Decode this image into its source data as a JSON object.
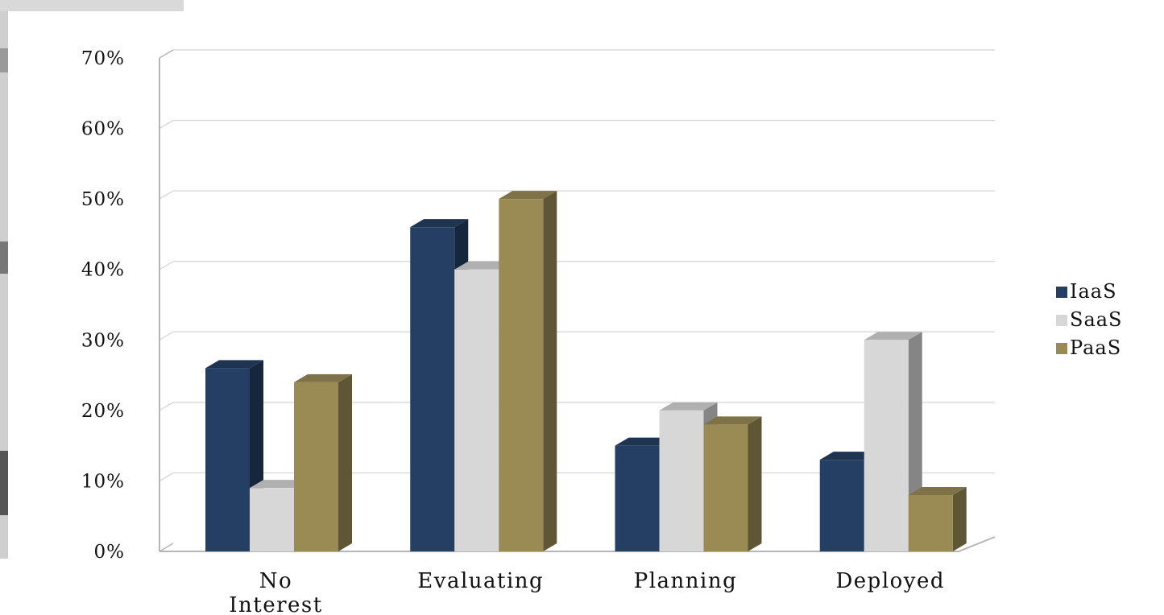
{
  "chart_data": {
    "type": "bar",
    "title": "",
    "xlabel": "",
    "ylabel": "",
    "categories": [
      [
        "No",
        "Interest"
      ],
      [
        "Evaluating"
      ],
      [
        "Planning"
      ],
      [
        "Deployed"
      ]
    ],
    "series": [
      {
        "name": "IaaS",
        "values": [
          26,
          46,
          15,
          13
        ],
        "color": "#243f63"
      },
      {
        "name": "SaaS",
        "values": [
          9,
          40,
          20,
          30
        ],
        "color": "#d7d7d7"
      },
      {
        "name": "PaaS",
        "values": [
          24,
          50,
          18,
          8
        ],
        "color": "#9a8b55"
      }
    ],
    "ylim": [
      0,
      70
    ],
    "yticks": [
      "0%",
      "10%",
      "20%",
      "30%",
      "40%",
      "50%",
      "60%",
      "70%"
    ],
    "grid": true,
    "legend": "right"
  }
}
